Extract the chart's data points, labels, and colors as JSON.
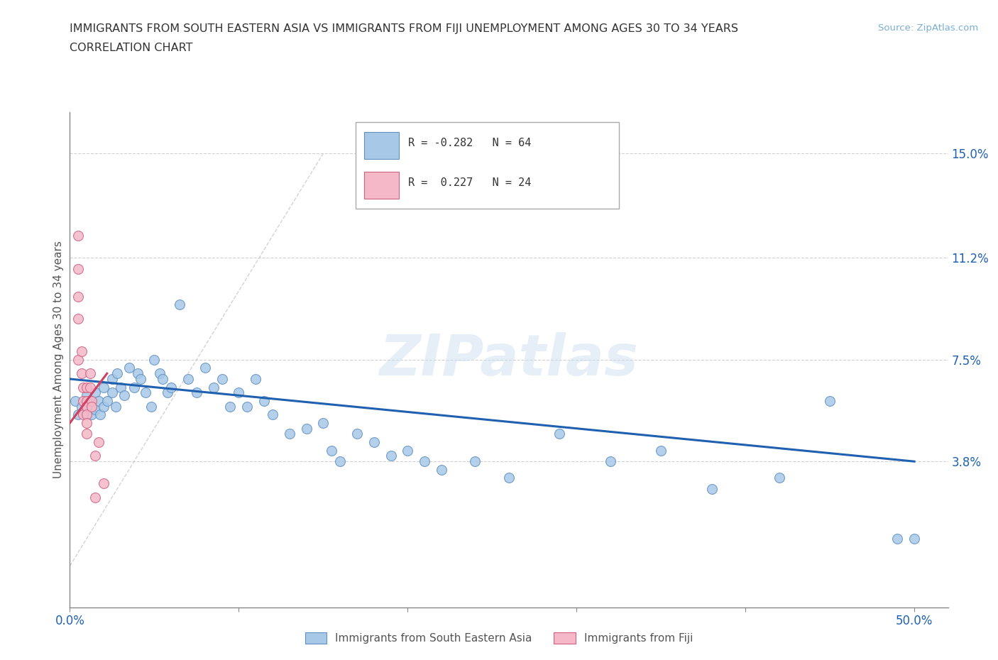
{
  "title_line1": "IMMIGRANTS FROM SOUTH EASTERN ASIA VS IMMIGRANTS FROM FIJI UNEMPLOYMENT AMONG AGES 30 TO 34 YEARS",
  "title_line2": "CORRELATION CHART",
  "source_text": "Source: ZipAtlas.com",
  "ylabel": "Unemployment Among Ages 30 to 34 years",
  "xlim": [
    0.0,
    0.52
  ],
  "ylim": [
    -0.015,
    0.165
  ],
  "xticks": [
    0.0,
    0.1,
    0.2,
    0.3,
    0.4,
    0.5
  ],
  "xticklabels": [
    "0.0%",
    "",
    "",
    "",
    "",
    "50.0%"
  ],
  "ytick_values": [
    0.038,
    0.075,
    0.112,
    0.15
  ],
  "ytick_labels": [
    "3.8%",
    "7.5%",
    "11.2%",
    "15.0%"
  ],
  "watermark": "ZIPatlas",
  "legend_r1": "R = -0.282",
  "legend_n1": "N = 64",
  "legend_r2": "R =  0.227",
  "legend_n2": "N = 24",
  "color_sea": "#a8c8e8",
  "color_fiji": "#f4b8c8",
  "color_sea_edge": "#6090c0",
  "color_fiji_edge": "#d06080",
  "color_sea_line": "#2060b0",
  "color_fiji_line": "#d04060",
  "color_diagonal": "#c8c8c8",
  "sea_scatter_x": [
    0.003,
    0.005,
    0.007,
    0.01,
    0.01,
    0.012,
    0.013,
    0.015,
    0.015,
    0.017,
    0.018,
    0.02,
    0.02,
    0.022,
    0.025,
    0.025,
    0.027,
    0.028,
    0.03,
    0.032,
    0.035,
    0.038,
    0.04,
    0.042,
    0.045,
    0.048,
    0.05,
    0.053,
    0.055,
    0.058,
    0.06,
    0.065,
    0.07,
    0.075,
    0.08,
    0.085,
    0.09,
    0.095,
    0.1,
    0.105,
    0.11,
    0.115,
    0.12,
    0.13,
    0.14,
    0.15,
    0.155,
    0.16,
    0.17,
    0.18,
    0.19,
    0.2,
    0.21,
    0.22,
    0.24,
    0.26,
    0.29,
    0.32,
    0.35,
    0.38,
    0.42,
    0.45,
    0.49,
    0.5
  ],
  "sea_scatter_y": [
    0.06,
    0.055,
    0.058,
    0.062,
    0.058,
    0.06,
    0.055,
    0.063,
    0.057,
    0.06,
    0.055,
    0.065,
    0.058,
    0.06,
    0.068,
    0.063,
    0.058,
    0.07,
    0.065,
    0.062,
    0.072,
    0.065,
    0.07,
    0.068,
    0.063,
    0.058,
    0.075,
    0.07,
    0.068,
    0.063,
    0.065,
    0.095,
    0.068,
    0.063,
    0.072,
    0.065,
    0.068,
    0.058,
    0.063,
    0.058,
    0.068,
    0.06,
    0.055,
    0.048,
    0.05,
    0.052,
    0.042,
    0.038,
    0.048,
    0.045,
    0.04,
    0.042,
    0.038,
    0.035,
    0.038,
    0.032,
    0.048,
    0.038,
    0.042,
    0.028,
    0.032,
    0.06,
    0.01,
    0.01
  ],
  "fiji_scatter_x": [
    0.005,
    0.005,
    0.005,
    0.005,
    0.005,
    0.007,
    0.007,
    0.008,
    0.008,
    0.008,
    0.01,
    0.01,
    0.01,
    0.01,
    0.01,
    0.01,
    0.012,
    0.012,
    0.013,
    0.013,
    0.015,
    0.015,
    0.017,
    0.02
  ],
  "fiji_scatter_y": [
    0.12,
    0.108,
    0.098,
    0.09,
    0.075,
    0.078,
    0.07,
    0.065,
    0.06,
    0.055,
    0.065,
    0.06,
    0.058,
    0.055,
    0.052,
    0.048,
    0.07,
    0.065,
    0.06,
    0.058,
    0.04,
    0.025,
    0.045,
    0.03
  ],
  "sea_trend_x": [
    0.0,
    0.5
  ],
  "sea_trend_y": [
    0.068,
    0.038
  ],
  "fiji_trend_x": [
    0.0,
    0.022
  ],
  "fiji_trend_y": [
    0.052,
    0.07
  ]
}
